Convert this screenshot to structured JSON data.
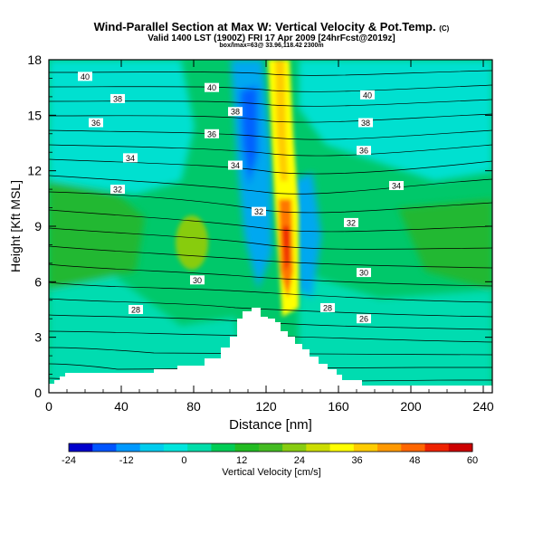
{
  "header": {
    "title": "Wind-Parallel Section at Max W: Vertical Velocity & Pot.Temp.",
    "copyright": "(C)",
    "valid_line": "Valid 1400 LST (1900Z) FRI 17 Apr 2009 [24hrFcst@2019z]",
    "location_line": "box/lmax=63@ 33.96,118.42 2300m"
  },
  "chart_data": {
    "type": "heatmap",
    "xlabel": "Distance [nm]",
    "ylabel": "Height [Kft MSL]",
    "xlim": [
      0,
      245
    ],
    "ylim": [
      0,
      18
    ],
    "x_ticks": [
      "0",
      "40",
      "80",
      "120",
      "160",
      "200",
      "240"
    ],
    "y_ticks": [
      "0",
      "3",
      "6",
      "9",
      "12",
      "15",
      "18"
    ],
    "colorbar": {
      "label": "Vertical Velocity [cm/s]",
      "ticks": [
        "-24",
        "-12",
        "0",
        "12",
        "24",
        "36",
        "48",
        "60"
      ],
      "range": [
        -24,
        60
      ],
      "colors": [
        "#0000cc",
        "#0055ff",
        "#0099ff",
        "#00ccee",
        "#00e5dd",
        "#00ddaa",
        "#00cc55",
        "#22bb22",
        "#44bb22",
        "#88cc11",
        "#ccdd00",
        "#ffff00",
        "#ffcc00",
        "#ff9900",
        "#ff6600",
        "#ee2200",
        "#cc0000"
      ]
    },
    "contour_labels": [
      {
        "text": "40",
        "x": 20,
        "y": 17.1
      },
      {
        "text": "40",
        "x": 90,
        "y": 16.5
      },
      {
        "text": "40",
        "x": 176,
        "y": 16.1
      },
      {
        "text": "38",
        "x": 38,
        "y": 15.9
      },
      {
        "text": "36",
        "x": 26,
        "y": 14.6
      },
      {
        "text": "38",
        "x": 103,
        "y": 15.2
      },
      {
        "text": "36",
        "x": 90,
        "y": 14.0
      },
      {
        "text": "38",
        "x": 175,
        "y": 14.6
      },
      {
        "text": "36",
        "x": 174,
        "y": 13.1
      },
      {
        "text": "34",
        "x": 45,
        "y": 12.7
      },
      {
        "text": "34",
        "x": 103,
        "y": 12.3
      },
      {
        "text": "34",
        "x": 192,
        "y": 11.2
      },
      {
        "text": "32",
        "x": 38,
        "y": 11.0
      },
      {
        "text": "32",
        "x": 116,
        "y": 9.8
      },
      {
        "text": "32",
        "x": 167,
        "y": 9.2
      },
      {
        "text": "30",
        "x": 82,
        "y": 6.1
      },
      {
        "text": "30",
        "x": 174,
        "y": 6.5
      },
      {
        "text": "28",
        "x": 48,
        "y": 4.5
      },
      {
        "text": "28",
        "x": 154,
        "y": 4.6
      },
      {
        "text": "26",
        "x": 174,
        "y": 4.0
      }
    ]
  }
}
